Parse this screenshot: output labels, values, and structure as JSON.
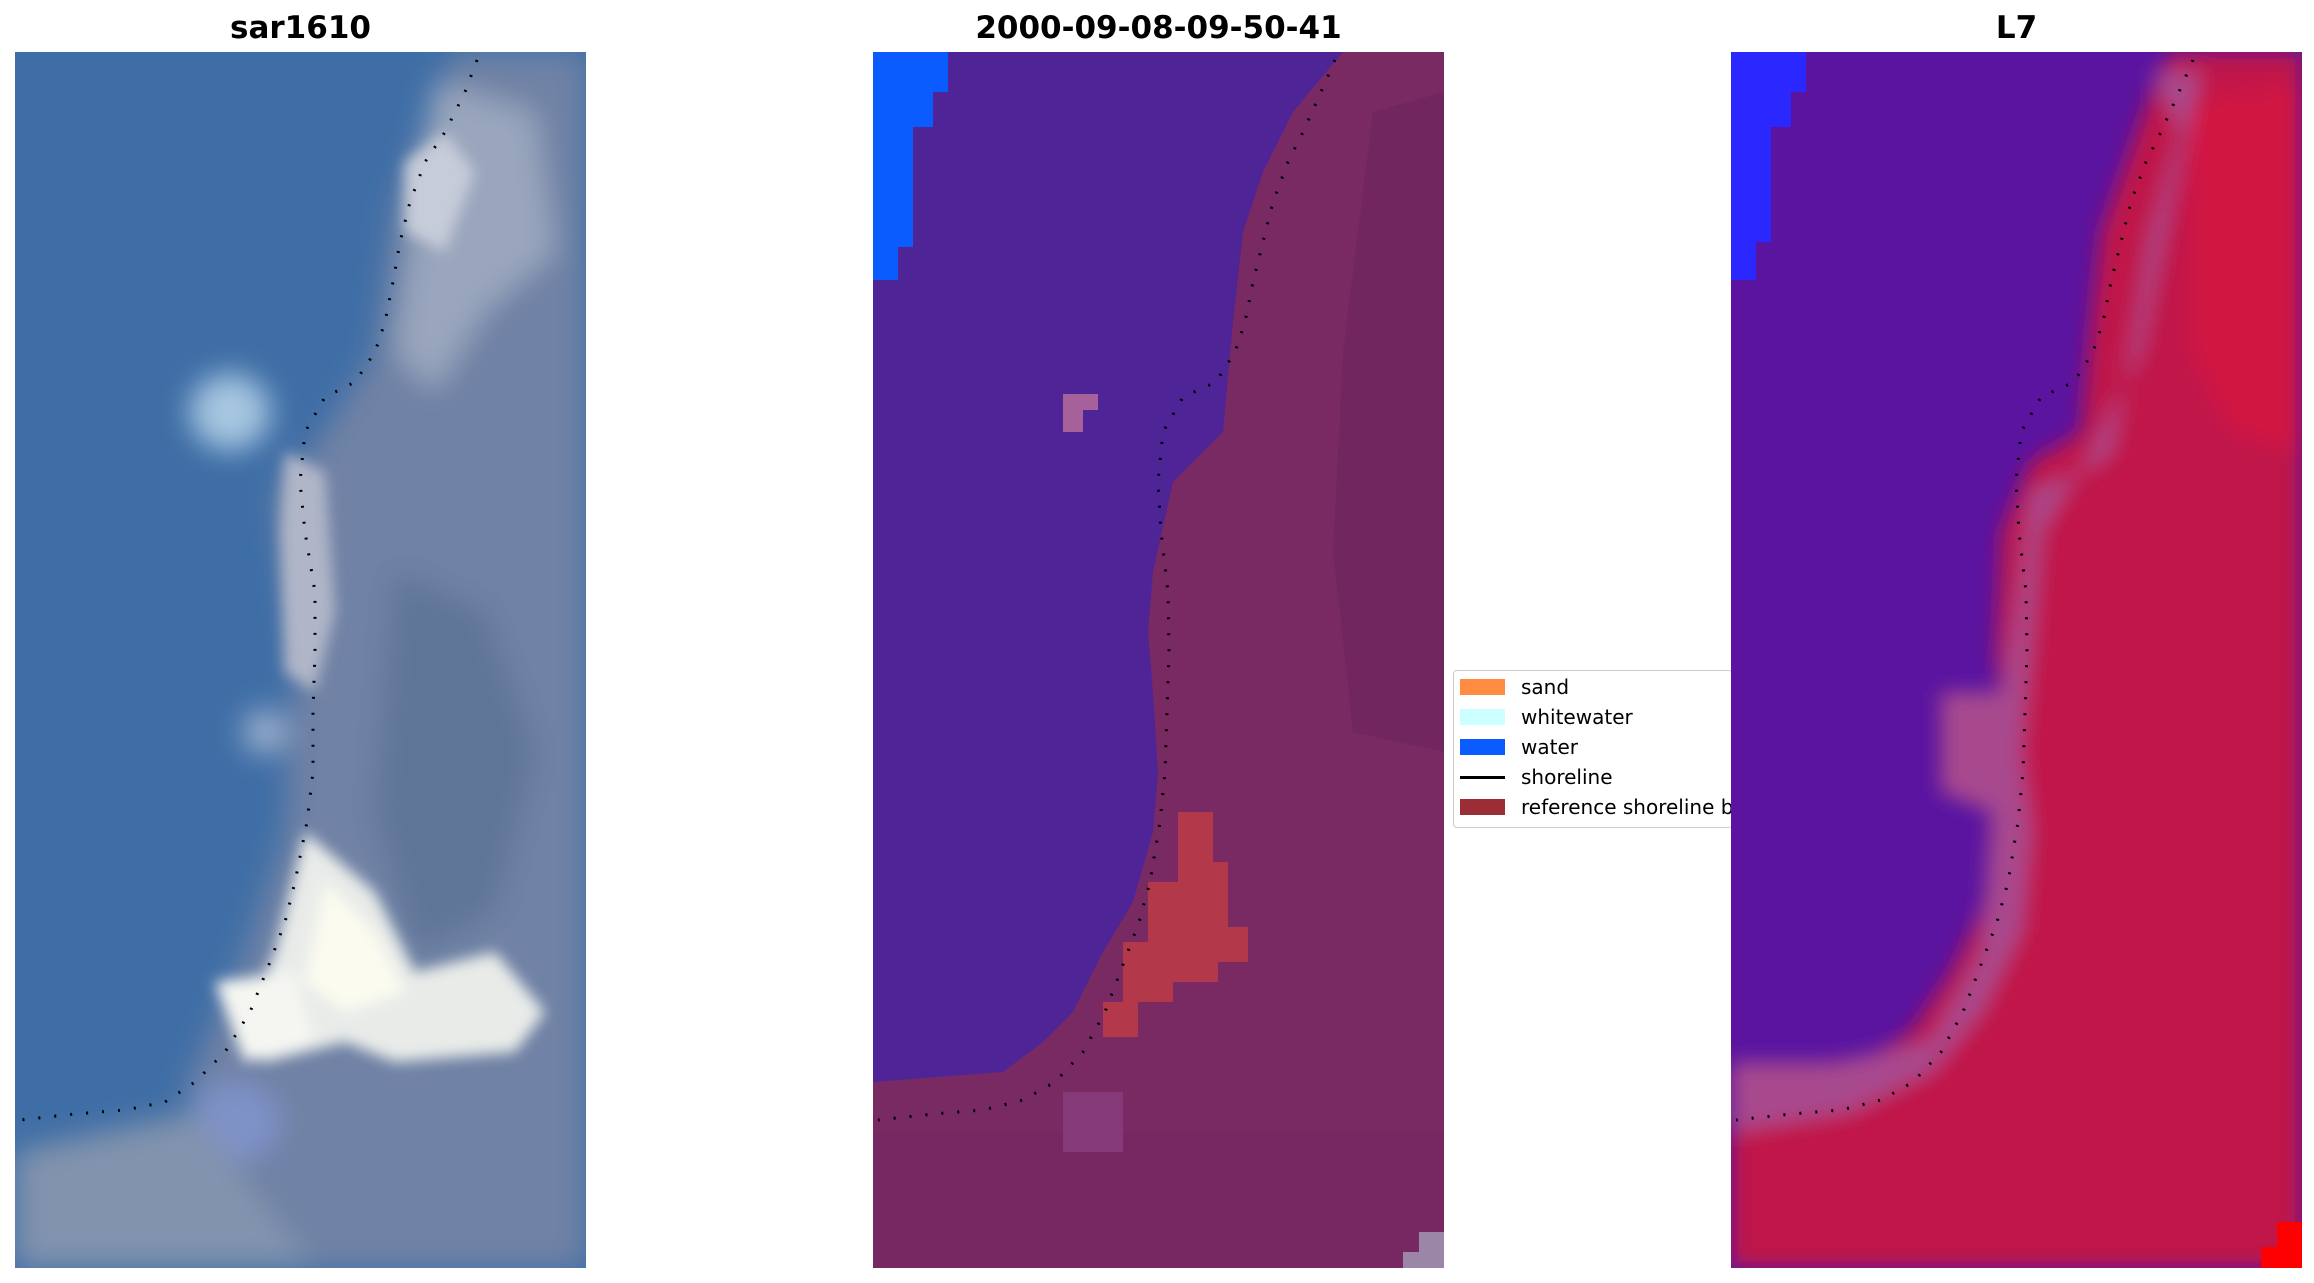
{
  "panels": [
    {
      "title": "sar1610",
      "type": "rgb"
    },
    {
      "title": "2000-09-08-09-50-41",
      "type": "classified"
    },
    {
      "title": "L7",
      "type": "index"
    }
  ],
  "legend": {
    "items": [
      {
        "label": "sand",
        "color": "#ff8c42",
        "kind": "patch"
      },
      {
        "label": "whitewater",
        "color": "#ccffff",
        "kind": "patch"
      },
      {
        "label": "water",
        "color": "#0a5cff",
        "kind": "patch"
      },
      {
        "label": "shoreline",
        "color": "#000000",
        "kind": "line"
      },
      {
        "label": "reference shoreline buffer",
        "color": "#9b2d37",
        "kind": "patch"
      }
    ]
  },
  "colors": {
    "ocean_blue": "#3f6ea6",
    "land_gray": "#7d8aa8",
    "surf_white": "#f2f2ee",
    "class_water_purple": "#4f2496",
    "class_land_mauve": "#7a2a63",
    "class_buffer_red": "#b3394a",
    "class_water_blue": "#0a5cff",
    "index_purple": "#5a14a0",
    "index_red": "#c0184a",
    "index_blue": "#2a28ff",
    "index_bright_red": "#ff0000"
  }
}
